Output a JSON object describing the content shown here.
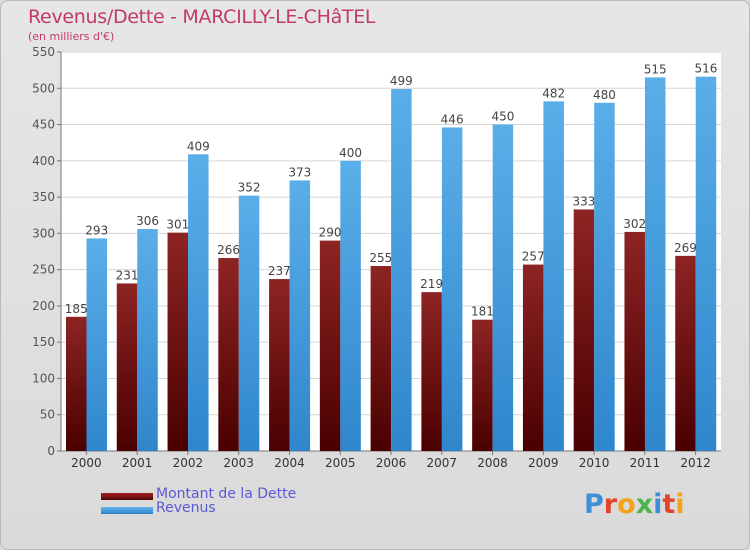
{
  "title": "Revenus/Dette - MARCILLY-LE-CHâTEL",
  "subtitle": "(en milliers d'€)",
  "logo_text": "Proxiti",
  "colors": {
    "dette": "#7a1010",
    "revenus": "#3d98dc",
    "title": "#c2396b",
    "legend_text": "#5a5ad6"
  },
  "chart_data": {
    "type": "bar",
    "categories": [
      "2000",
      "2001",
      "2002",
      "2003",
      "2004",
      "2005",
      "2006",
      "2007",
      "2008",
      "2009",
      "2010",
      "2011",
      "2012"
    ],
    "series": [
      {
        "name": "Montant de la Dette",
        "values": [
          185,
          231,
          301,
          266,
          237,
          290,
          255,
          219,
          181,
          257,
          333,
          302,
          269
        ]
      },
      {
        "name": "Revenus",
        "values": [
          293,
          306,
          409,
          352,
          373,
          400,
          499,
          446,
          450,
          482,
          480,
          515,
          516
        ]
      }
    ],
    "ylim": [
      0,
      550
    ],
    "yticks": [
      0,
      50,
      100,
      150,
      200,
      250,
      300,
      350,
      400,
      450,
      500,
      550
    ],
    "grid": true,
    "legend_position": "bottom-left",
    "data_labels": true
  }
}
